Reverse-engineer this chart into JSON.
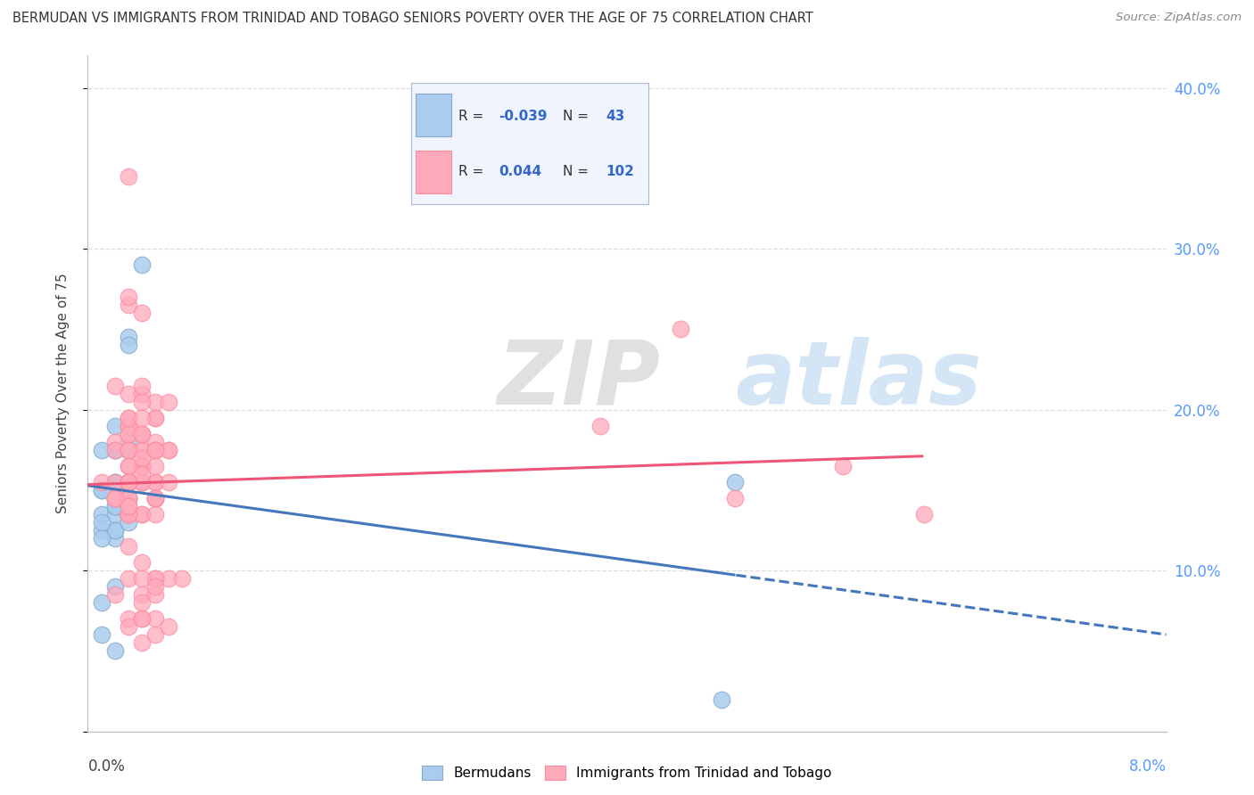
{
  "title": "BERMUDAN VS IMMIGRANTS FROM TRINIDAD AND TOBAGO SENIORS POVERTY OVER THE AGE OF 75 CORRELATION CHART",
  "source": "Source: ZipAtlas.com",
  "ylabel": "Seniors Poverty Over the Age of 75",
  "y_ticks": [
    0.0,
    0.1,
    0.2,
    0.3,
    0.4
  ],
  "y_tick_labels_right": [
    "",
    "10.0%",
    "20.0%",
    "30.0%",
    "40.0%"
  ],
  "xlim": [
    0.0,
    0.08
  ],
  "ylim": [
    0.0,
    0.42
  ],
  "watermark_zip": "ZIP",
  "watermark_atlas": "atlas",
  "blue_scatter_x": [
    0.002,
    0.003,
    0.004,
    0.005,
    0.001,
    0.003,
    0.002,
    0.001,
    0.002,
    0.003,
    0.004,
    0.002,
    0.003,
    0.003,
    0.002,
    0.003,
    0.003,
    0.002,
    0.003,
    0.002,
    0.002,
    0.003,
    0.002,
    0.001,
    0.002,
    0.002,
    0.003,
    0.004,
    0.002,
    0.001,
    0.003,
    0.002,
    0.001,
    0.001,
    0.004,
    0.048,
    0.001,
    0.002,
    0.002,
    0.001,
    0.001,
    0.003,
    0.047
  ],
  "blue_scatter_y": [
    0.19,
    0.175,
    0.29,
    0.145,
    0.135,
    0.155,
    0.145,
    0.125,
    0.155,
    0.145,
    0.165,
    0.12,
    0.135,
    0.245,
    0.175,
    0.18,
    0.175,
    0.145,
    0.175,
    0.175,
    0.125,
    0.155,
    0.135,
    0.15,
    0.125,
    0.14,
    0.24,
    0.155,
    0.155,
    0.08,
    0.155,
    0.05,
    0.13,
    0.15,
    0.165,
    0.155,
    0.06,
    0.09,
    0.14,
    0.12,
    0.175,
    0.13,
    0.02
  ],
  "pink_scatter_x": [
    0.001,
    0.002,
    0.003,
    0.003,
    0.004,
    0.005,
    0.002,
    0.003,
    0.004,
    0.003,
    0.004,
    0.003,
    0.005,
    0.006,
    0.003,
    0.004,
    0.003,
    0.004,
    0.003,
    0.005,
    0.002,
    0.003,
    0.004,
    0.002,
    0.003,
    0.004,
    0.003,
    0.002,
    0.004,
    0.005,
    0.003,
    0.004,
    0.005,
    0.003,
    0.002,
    0.004,
    0.003,
    0.004,
    0.005,
    0.003,
    0.004,
    0.005,
    0.006,
    0.003,
    0.004,
    0.003,
    0.004,
    0.005,
    0.006,
    0.007,
    0.003,
    0.004,
    0.005,
    0.006,
    0.003,
    0.004,
    0.005,
    0.048,
    0.056,
    0.062,
    0.003,
    0.004,
    0.005,
    0.006,
    0.003,
    0.004,
    0.005,
    0.002,
    0.003,
    0.004,
    0.005,
    0.003,
    0.004,
    0.005,
    0.003,
    0.004,
    0.038,
    0.044,
    0.003,
    0.004,
    0.005,
    0.003,
    0.004,
    0.005,
    0.003,
    0.004,
    0.002,
    0.003,
    0.004,
    0.005,
    0.003,
    0.004,
    0.005,
    0.003,
    0.004,
    0.005,
    0.003,
    0.004,
    0.005,
    0.006,
    0.003,
    0.004
  ],
  "pink_scatter_y": [
    0.155,
    0.18,
    0.265,
    0.27,
    0.26,
    0.195,
    0.215,
    0.21,
    0.21,
    0.185,
    0.185,
    0.155,
    0.155,
    0.175,
    0.175,
    0.175,
    0.195,
    0.185,
    0.19,
    0.205,
    0.175,
    0.135,
    0.165,
    0.145,
    0.135,
    0.135,
    0.135,
    0.145,
    0.155,
    0.18,
    0.145,
    0.165,
    0.175,
    0.155,
    0.155,
    0.165,
    0.145,
    0.165,
    0.175,
    0.145,
    0.165,
    0.155,
    0.175,
    0.19,
    0.205,
    0.165,
    0.135,
    0.145,
    0.095,
    0.095,
    0.345,
    0.215,
    0.195,
    0.205,
    0.185,
    0.165,
    0.145,
    0.145,
    0.165,
    0.135,
    0.165,
    0.175,
    0.165,
    0.155,
    0.155,
    0.155,
    0.095,
    0.085,
    0.135,
    0.105,
    0.095,
    0.115,
    0.085,
    0.085,
    0.095,
    0.08,
    0.19,
    0.25,
    0.195,
    0.195,
    0.135,
    0.14,
    0.095,
    0.09,
    0.175,
    0.17,
    0.145,
    0.155,
    0.16,
    0.145,
    0.155,
    0.185,
    0.175,
    0.14,
    0.055,
    0.06,
    0.07,
    0.07,
    0.07,
    0.065,
    0.065,
    0.07
  ],
  "blue_dot_face": "#AACCEE",
  "blue_dot_edge": "#88AACC",
  "pink_dot_face": "#FFAABB",
  "pink_dot_edge": "#FF8899",
  "blue_line_color": "#4477BB",
  "pink_line_color": "#EE5577",
  "grid_color": "#DDDDDD",
  "right_tick_color": "#5599FF",
  "legend_box_color": "#F0F4FF",
  "legend_border_color": "#AABBCC"
}
